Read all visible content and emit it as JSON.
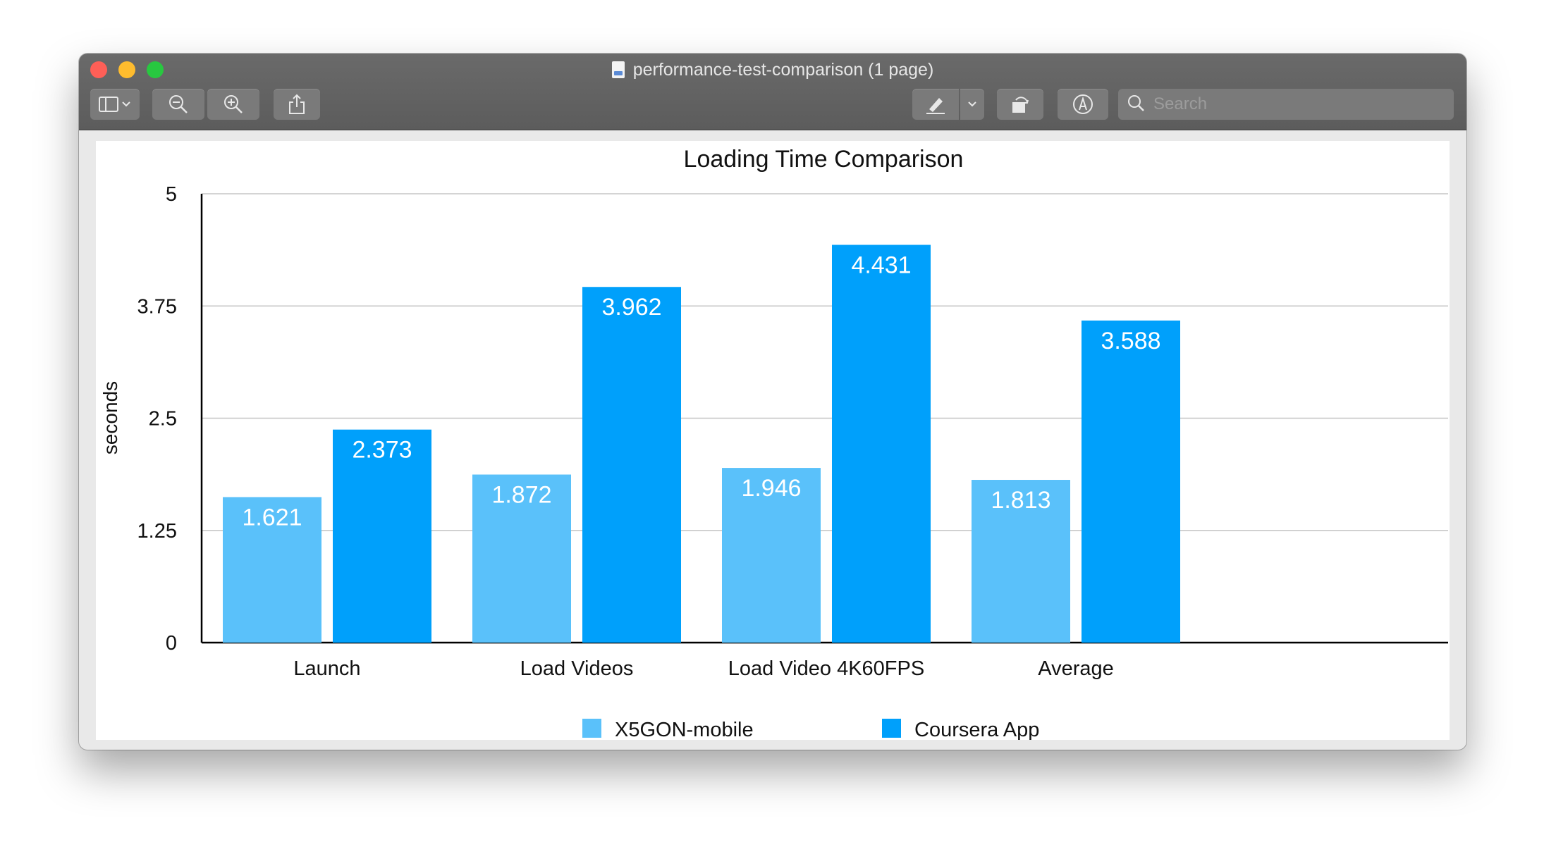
{
  "window": {
    "title": "performance-test-comparison (1 page)",
    "search_placeholder": "Search"
  },
  "toolbar": {
    "sidebar_icon": "sidebar-icon",
    "zoom_out_icon": "zoom-out-icon",
    "zoom_in_icon": "zoom-in-icon",
    "share_icon": "share-icon",
    "markup_icon": "highlighter-icon",
    "rotate_icon": "rotate-icon",
    "annotate_icon": "markup-icon"
  },
  "colors": {
    "series1": "#5ac1fa",
    "series2": "#00a0fb"
  },
  "chart_data": {
    "type": "bar",
    "title": "Loading Time Comparison",
    "xlabel": "",
    "ylabel": "seconds",
    "ylim": [
      0,
      5
    ],
    "yticks": [
      "0",
      "1.25",
      "2.5",
      "3.75",
      "5"
    ],
    "grid": true,
    "legend_position": "bottom",
    "categories": [
      "Launch",
      "Load Videos",
      "Load Video 4K60FPS",
      "Average"
    ],
    "series": [
      {
        "name": "X5GON-mobile",
        "values": [
          1.621,
          1.872,
          1.946,
          1.813
        ],
        "labels": [
          "1.621",
          "1.872",
          "1.946",
          "1.813"
        ]
      },
      {
        "name": "Coursera App",
        "values": [
          2.373,
          3.962,
          4.431,
          3.588
        ],
        "labels": [
          "2.373",
          "3.962",
          "4.431",
          "3.588"
        ]
      }
    ]
  }
}
